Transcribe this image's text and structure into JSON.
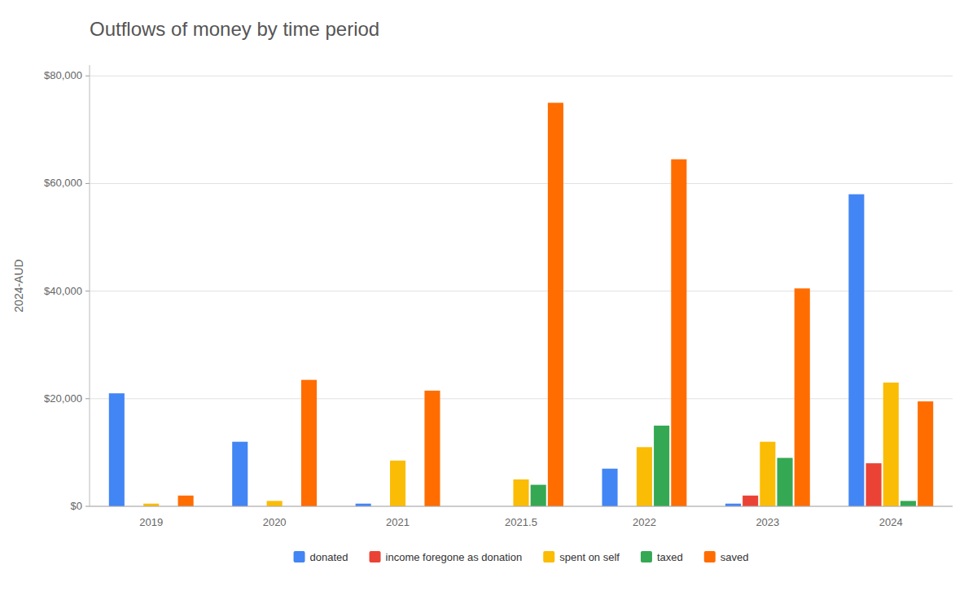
{
  "chart_data": {
    "type": "bar",
    "title": "Outflows of money by time period",
    "ylabel": "2024-AUD",
    "categories": [
      "2019",
      "2020",
      "2021",
      "2021.5",
      "2022",
      "2023",
      "2024"
    ],
    "series": [
      {
        "name": "donated",
        "color": "#4285F4",
        "values": [
          21000,
          12000,
          500,
          0,
          7000,
          500,
          58000
        ]
      },
      {
        "name": "income foregone as donation",
        "color": "#EA4335",
        "values": [
          0,
          0,
          0,
          0,
          0,
          2000,
          8000
        ]
      },
      {
        "name": "spent on self",
        "color": "#FBBC05",
        "values": [
          500,
          1000,
          8500,
          5000,
          11000,
          12000,
          23000
        ]
      },
      {
        "name": "taxed",
        "color": "#34A853",
        "values": [
          0,
          0,
          0,
          4000,
          15000,
          9000,
          1000
        ]
      },
      {
        "name": "saved",
        "color": "#FF6D00",
        "values": [
          2000,
          23500,
          21500,
          75000,
          64500,
          40500,
          19500
        ]
      }
    ],
    "ylim": [
      0,
      82000
    ],
    "yticks": [
      {
        "value": 0,
        "label": "$0"
      },
      {
        "value": 20000,
        "label": "$20,000"
      },
      {
        "value": 40000,
        "label": "$40,000"
      },
      {
        "value": 60000,
        "label": "$60,000"
      },
      {
        "value": 80000,
        "label": "$80,000"
      }
    ],
    "grid": true,
    "legend": "bottom"
  }
}
